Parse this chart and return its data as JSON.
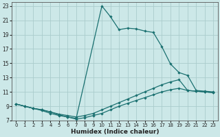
{
  "xlabel": "Humidex (Indice chaleur)",
  "bg_color": "#cce8e8",
  "grid_color": "#aacccc",
  "line_color": "#1a7070",
  "xlim": [
    -0.5,
    23.5
  ],
  "ylim": [
    7,
    23.5
  ],
  "yticks": [
    7,
    9,
    11,
    13,
    15,
    17,
    19,
    21,
    23
  ],
  "xticks": [
    0,
    1,
    2,
    3,
    4,
    5,
    6,
    7,
    8,
    9,
    10,
    11,
    12,
    13,
    14,
    15,
    16,
    17,
    18,
    19,
    20,
    21,
    22,
    23
  ],
  "main_x": [
    0,
    1,
    2,
    3,
    4,
    5,
    6,
    7,
    10,
    11,
    12,
    13,
    14,
    15,
    16,
    17,
    18,
    19,
    20,
    21,
    22,
    23
  ],
  "main_y": [
    9.3,
    9.0,
    8.7,
    8.4,
    8.0,
    7.7,
    7.5,
    7.3,
    23.0,
    21.5,
    19.7,
    19.9,
    19.8,
    19.5,
    19.3,
    17.3,
    14.9,
    13.7,
    13.3,
    11.2,
    11.1,
    11.0
  ],
  "upper_x": [
    0,
    1,
    2,
    3,
    4,
    5,
    6,
    7,
    8,
    9,
    10,
    11,
    12,
    13,
    14,
    15,
    16,
    17,
    18,
    19,
    20,
    21,
    22,
    23
  ],
  "upper_y": [
    9.3,
    9.0,
    8.7,
    8.5,
    8.2,
    7.9,
    7.7,
    7.5,
    7.7,
    8.0,
    8.5,
    9.0,
    9.5,
    10.0,
    10.5,
    11.0,
    11.5,
    12.0,
    12.4,
    12.7,
    11.2,
    11.1,
    11.0,
    10.9
  ],
  "lower_x": [
    0,
    1,
    2,
    3,
    4,
    5,
    6,
    7,
    8,
    9,
    10,
    11,
    12,
    13,
    14,
    15,
    16,
    17,
    18,
    19,
    20,
    21,
    22,
    23
  ],
  "lower_y": [
    9.3,
    9.0,
    8.7,
    8.5,
    8.2,
    7.8,
    7.5,
    7.2,
    7.4,
    7.7,
    8.0,
    8.5,
    9.0,
    9.4,
    9.8,
    10.2,
    10.6,
    11.0,
    11.3,
    11.5,
    11.2,
    11.1,
    11.0,
    10.9
  ]
}
